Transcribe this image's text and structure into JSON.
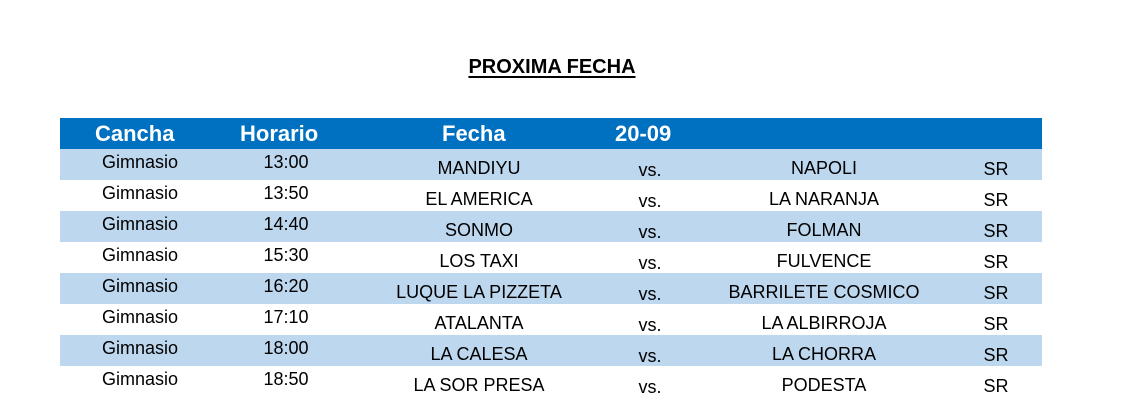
{
  "title": "PROXIMA FECHA",
  "header": {
    "cancha": "Cancha",
    "horario": "Horario",
    "fecha": "Fecha",
    "date": "20-09"
  },
  "rows": [
    {
      "cancha": "Gimnasio",
      "horario": "13:00",
      "local": "MANDIYU",
      "vs": "vs.",
      "visitante": "NAPOLI",
      "arbitro": "SR"
    },
    {
      "cancha": "Gimnasio",
      "horario": "13:50",
      "local": "EL AMERICA",
      "vs": "vs.",
      "visitante": "LA NARANJA",
      "arbitro": "SR"
    },
    {
      "cancha": "Gimnasio",
      "horario": "14:40",
      "local": "SONMO",
      "vs": "vs.",
      "visitante": "FOLMAN",
      "arbitro": "SR"
    },
    {
      "cancha": "Gimnasio",
      "horario": "15:30",
      "local": "LOS TAXI",
      "vs": "vs.",
      "visitante": "FULVENCE",
      "arbitro": "SR"
    },
    {
      "cancha": "Gimnasio",
      "horario": "16:20",
      "local": "LUQUE LA PIZZETA",
      "vs": "vs.",
      "visitante": "BARRILETE COSMICO",
      "arbitro": "SR"
    },
    {
      "cancha": "Gimnasio",
      "horario": "17:10",
      "local": "ATALANTA",
      "vs": "vs.",
      "visitante": "LA ALBIRROJA",
      "arbitro": "SR"
    },
    {
      "cancha": "Gimnasio",
      "horario": "18:00",
      "local": "LA CALESA",
      "vs": "vs.",
      "visitante": "LA CHORRA",
      "arbitro": "SR"
    },
    {
      "cancha": "Gimnasio",
      "horario": "18:50",
      "local": "LA SOR PRESA",
      "vs": "vs.",
      "visitante": "PODESTA",
      "arbitro": "SR"
    }
  ]
}
